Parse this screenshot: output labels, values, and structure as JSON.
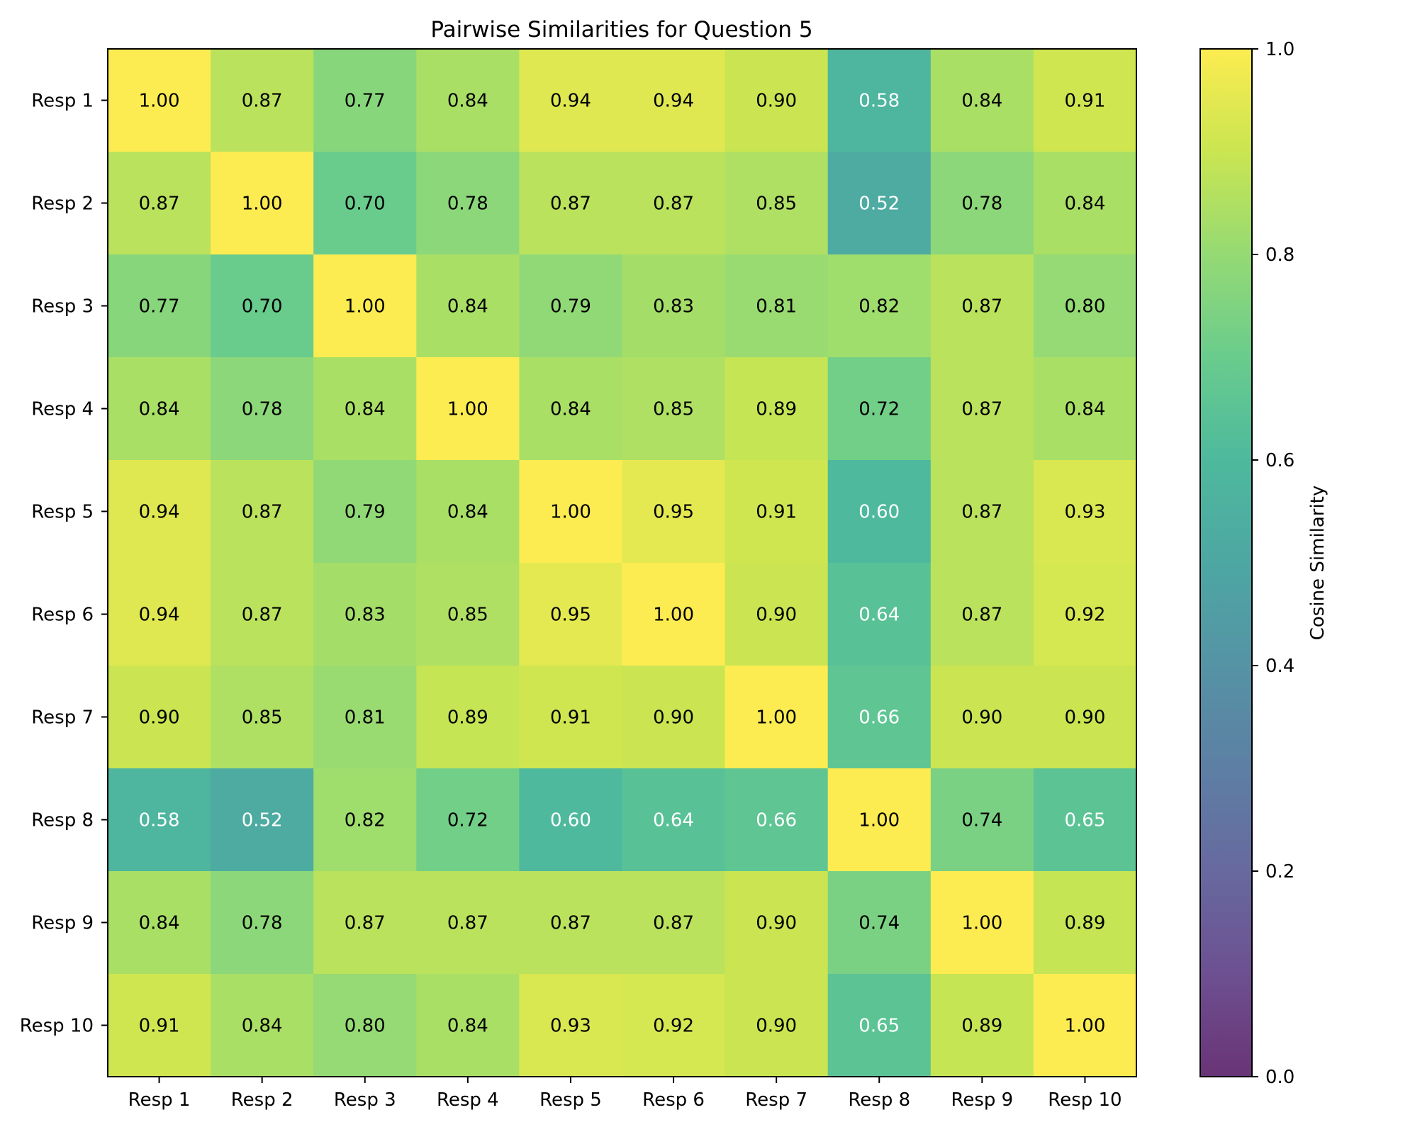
{
  "chart_data": {
    "type": "heatmap",
    "title": "Pairwise Similarities for Question 5",
    "xlabel": "",
    "ylabel": "",
    "x_labels": [
      "Resp 1",
      "Resp 2",
      "Resp 3",
      "Resp 4",
      "Resp 5",
      "Resp 6",
      "Resp 7",
      "Resp 8",
      "Resp 9",
      "Resp 10"
    ],
    "y_labels": [
      "Resp 1",
      "Resp 2",
      "Resp 3",
      "Resp 4",
      "Resp 5",
      "Resp 6",
      "Resp 7",
      "Resp 8",
      "Resp 9",
      "Resp 10"
    ],
    "values": [
      [
        1.0,
        0.87,
        0.77,
        0.84,
        0.94,
        0.94,
        0.9,
        0.58,
        0.84,
        0.91
      ],
      [
        0.87,
        1.0,
        0.7,
        0.78,
        0.87,
        0.87,
        0.85,
        0.52,
        0.78,
        0.84
      ],
      [
        0.77,
        0.7,
        1.0,
        0.84,
        0.79,
        0.83,
        0.81,
        0.82,
        0.87,
        0.8
      ],
      [
        0.84,
        0.78,
        0.84,
        1.0,
        0.84,
        0.85,
        0.89,
        0.72,
        0.87,
        0.84
      ],
      [
        0.94,
        0.87,
        0.79,
        0.84,
        1.0,
        0.95,
        0.91,
        0.6,
        0.87,
        0.93
      ],
      [
        0.94,
        0.87,
        0.83,
        0.85,
        0.95,
        1.0,
        0.9,
        0.64,
        0.87,
        0.92
      ],
      [
        0.9,
        0.85,
        0.81,
        0.89,
        0.91,
        0.9,
        1.0,
        0.66,
        0.9,
        0.9
      ],
      [
        0.58,
        0.52,
        0.82,
        0.72,
        0.6,
        0.64,
        0.66,
        1.0,
        0.74,
        0.65
      ],
      [
        0.84,
        0.78,
        0.87,
        0.87,
        0.87,
        0.87,
        0.9,
        0.74,
        1.0,
        0.89
      ],
      [
        0.91,
        0.84,
        0.8,
        0.84,
        0.93,
        0.92,
        0.9,
        0.65,
        0.89,
        1.0
      ]
    ],
    "value_format": "0.00",
    "colormap": "viridis",
    "color_range": [
      0.0,
      1.0
    ],
    "colorbar": {
      "label": "Cosine Similarity",
      "ticks": [
        0.0,
        0.2,
        0.4,
        0.6,
        0.8,
        1.0
      ],
      "tick_labels": [
        "0.0",
        "0.2",
        "0.4",
        "0.6",
        "0.8",
        "1.0"
      ]
    },
    "annotation_colors": {
      "dark_text": "#000000",
      "light_text": "#ffffff",
      "light_text_below": 0.7
    }
  }
}
